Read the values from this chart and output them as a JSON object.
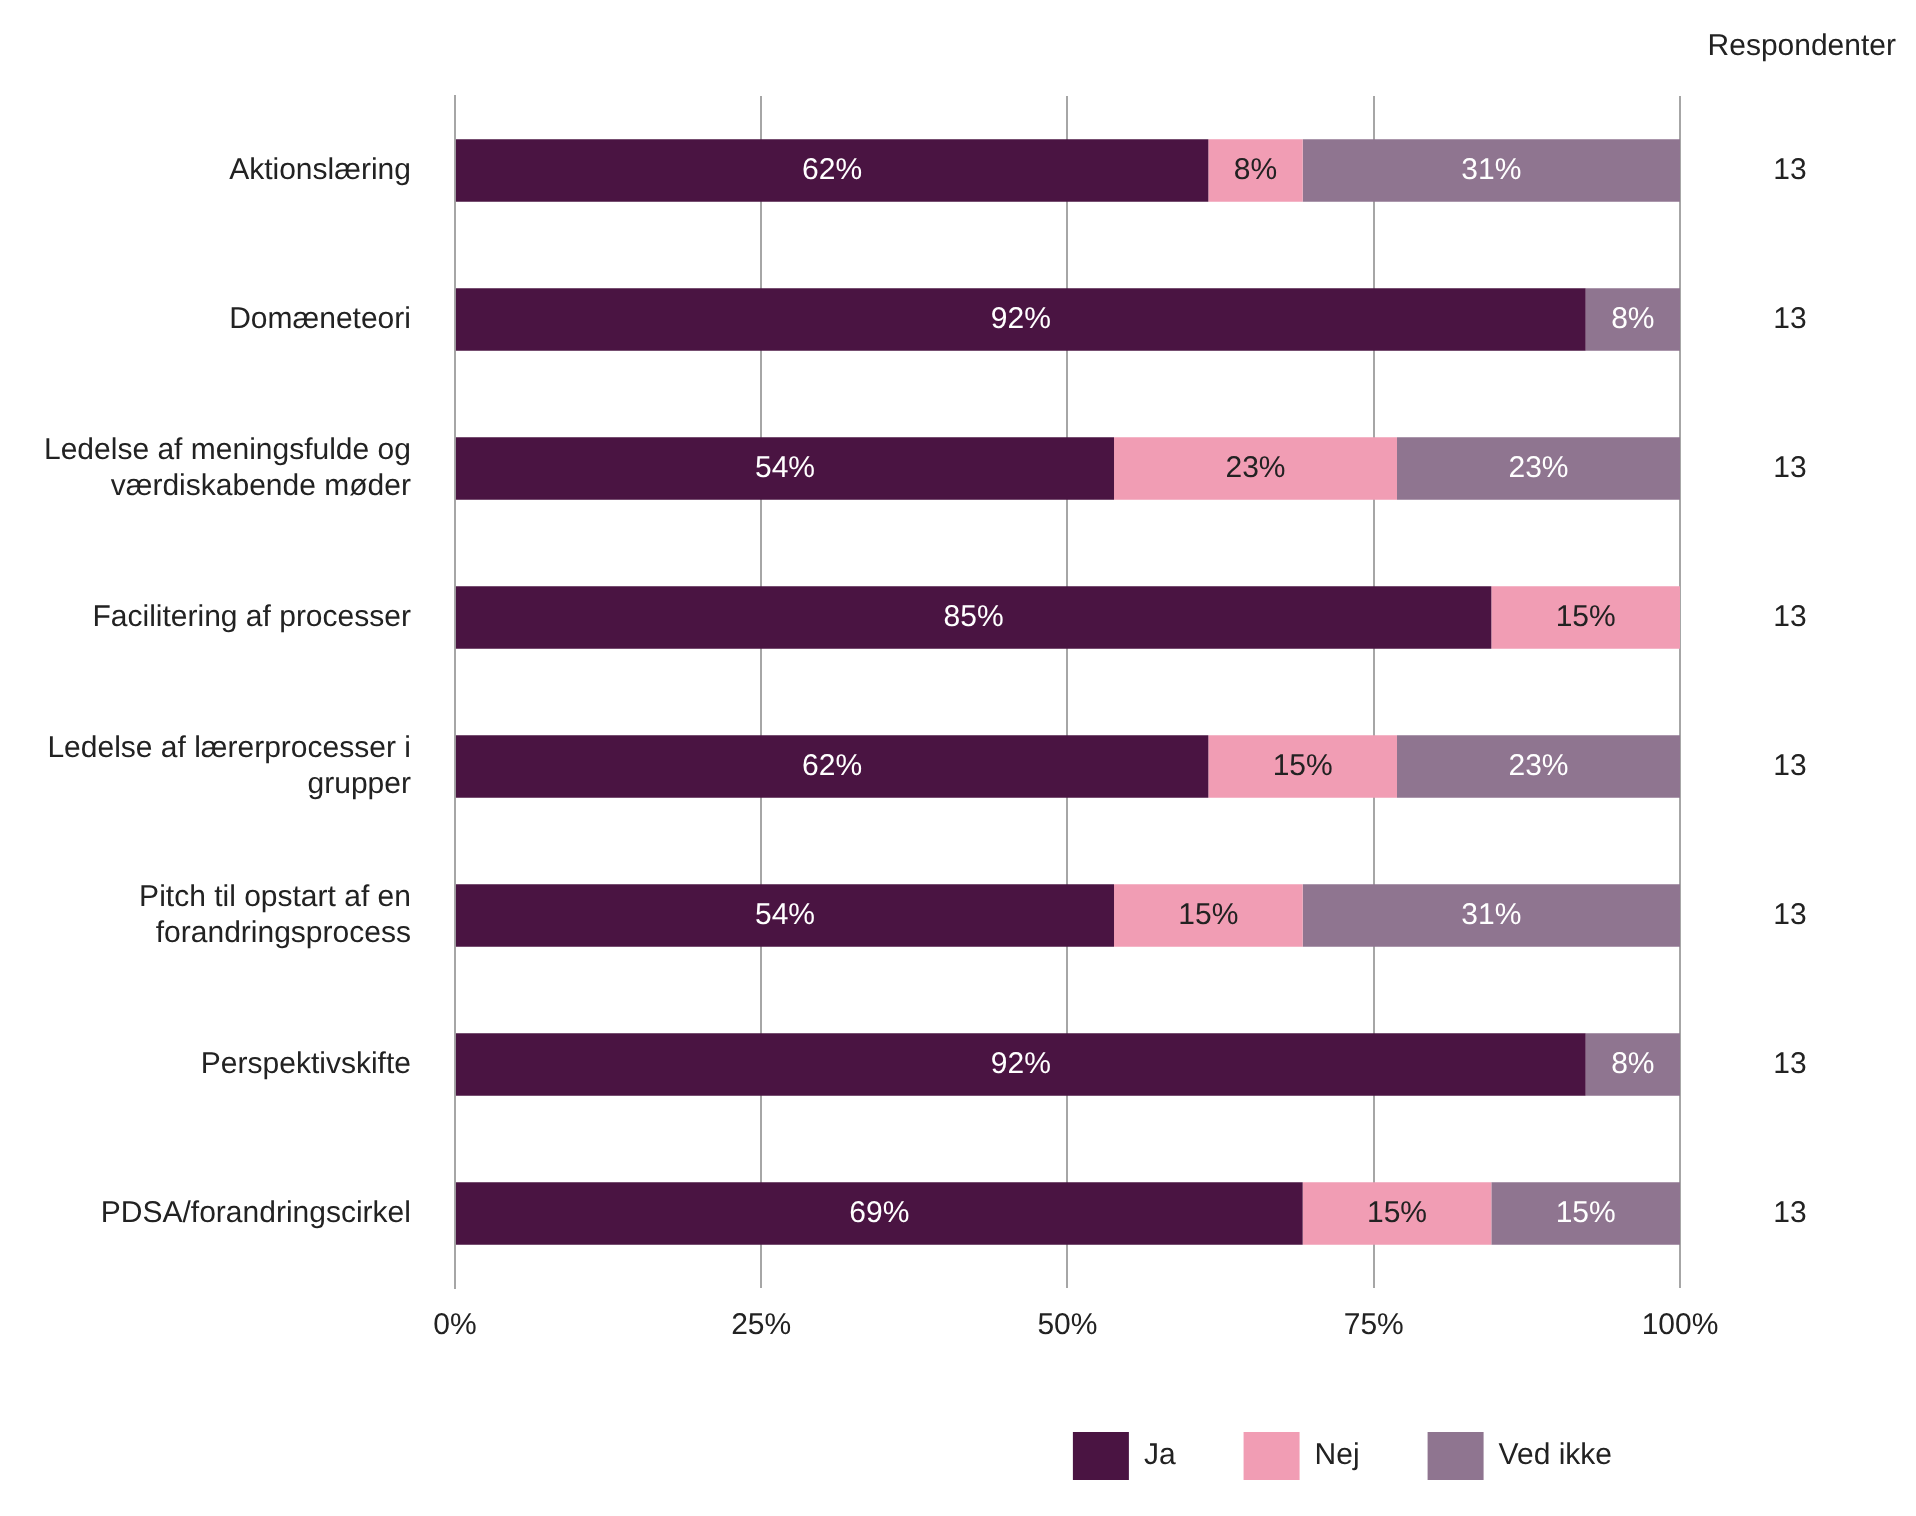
{
  "chart_data": {
    "type": "bar",
    "orientation": "horizontal",
    "stacked": true,
    "categories": [
      "Aktionslæring",
      "Domæneteori",
      "Ledelse af meningsfulde og værdiskabende møder",
      "Facilitering af processer",
      "Ledelse af lærerprocesser i grupper",
      "Pitch til opstart af en forandringsprocess",
      "Perspektivskifte",
      "PDSA/forandringscirkel"
    ],
    "series": [
      {
        "name": "Ja",
        "color": "#4a1442",
        "values": [
          61.5,
          92.3,
          53.8,
          84.6,
          61.5,
          53.8,
          92.3,
          69.2
        ],
        "value_labels": [
          "62%",
          "92%",
          "54%",
          "85%",
          "62%",
          "54%",
          "92%",
          "69%"
        ]
      },
      {
        "name": "Nej",
        "color": "#f19db4",
        "values": [
          7.7,
          0,
          23.1,
          15.4,
          15.4,
          15.4,
          0,
          15.4
        ],
        "value_labels": [
          "8%",
          null,
          "23%",
          "15%",
          "15%",
          "15%",
          null,
          "15%"
        ]
      },
      {
        "name": "Ved ikke",
        "color": "#8f7590",
        "values": [
          30.8,
          7.7,
          23.1,
          0,
          23.1,
          30.8,
          7.7,
          15.4
        ],
        "value_labels": [
          "31%",
          "8%",
          "23%",
          null,
          "23%",
          "31%",
          "8%",
          "15%"
        ]
      }
    ],
    "xlim": [
      0,
      100
    ],
    "xticks": [
      {
        "value": 0,
        "label": "0%"
      },
      {
        "value": 25,
        "label": "25%"
      },
      {
        "value": 50,
        "label": "50%"
      },
      {
        "value": 75,
        "label": "75%"
      },
      {
        "value": 100,
        "label": "100%"
      }
    ],
    "grid": "x",
    "legend": "bottom",
    "annotations": [
      "Respondenter",
      "13",
      "13",
      "13",
      "13",
      "13",
      "13",
      "13",
      "13"
    ]
  }
}
